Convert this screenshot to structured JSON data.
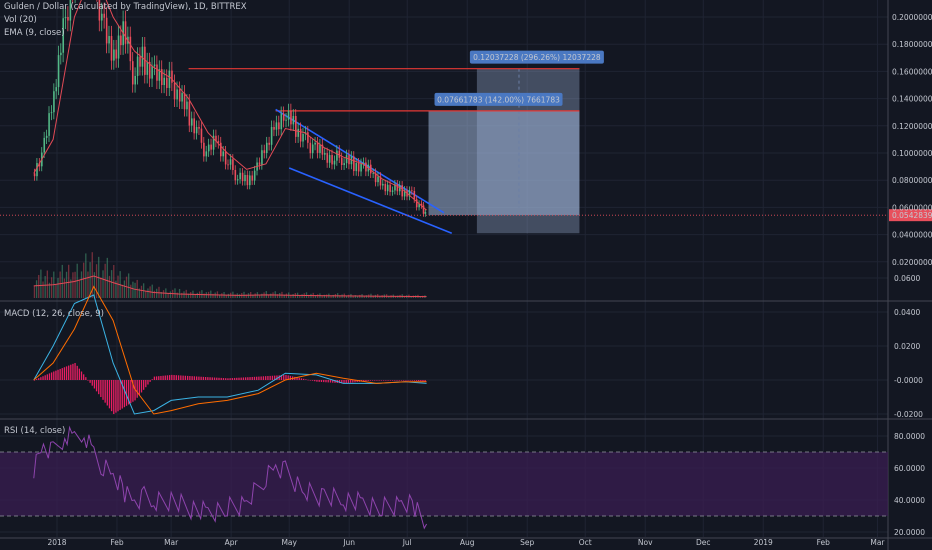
{
  "header": {
    "symbol_line": "Gulden / Dollar (calculated by TradingView), 1D, BITTREX",
    "vol_label": "Vol (20)",
    "ema_label": "EMA (9, close)",
    "macd_label": "MACD (12, 26, close, 9)",
    "rsi_label": "RSI (14, close)"
  },
  "colors": {
    "background": "#131722",
    "up": "#53b987",
    "down": "#eb4d5c",
    "ema": "#e24a56",
    "macd_line": "#3bb3e4",
    "signal_line": "#ff6d00",
    "histogram": "#e91e63",
    "rsi": "#8e44ad",
    "rsi_band": "#3a1e52",
    "trendline": "#2962ff",
    "target_line": "#e53935",
    "projection_box": "#9db2d6",
    "label_bg": "#4a78c2",
    "last_price_bg": "#e84f5c"
  },
  "chart_data": [
    {
      "type": "candlestick",
      "panel": "price",
      "title": "Gulden / Dollar (calculated by TradingView), 1D, BITTREX",
      "x_axis_labels": [
        "2018",
        "Feb",
        "Mar",
        "Apr",
        "May",
        "Jun",
        "Jul",
        "Aug",
        "Sep",
        "Oct",
        "Nov",
        "Dec",
        "2019",
        "Feb",
        "Mar"
      ],
      "y_ticks": [
        "0.20000000",
        "0.18000000",
        "0.16000000",
        "0.14000000",
        "0.12000000",
        "0.10000000",
        "0.08000000",
        "0.06000000",
        "0.04000000",
        "0.02000000"
      ],
      "last_price": "0.05428395",
      "series": [
        {
          "name": "price",
          "x": [
            "2017-12-20",
            "2017-12-25",
            "2017-12-30",
            "2018-01-05",
            "2018-01-10",
            "2018-01-15",
            "2018-01-20",
            "2018-01-25",
            "2018-01-30",
            "2018-02-05",
            "2018-02-10",
            "2018-02-15",
            "2018-02-20",
            "2018-02-25",
            "2018-03-01",
            "2018-03-05",
            "2018-03-10",
            "2018-03-15",
            "2018-03-20",
            "2018-03-25",
            "2018-03-30",
            "2018-04-04",
            "2018-04-09",
            "2018-04-14",
            "2018-04-19",
            "2018-04-24",
            "2018-04-29",
            "2018-05-04",
            "2018-05-09",
            "2018-05-14",
            "2018-05-19",
            "2018-05-24",
            "2018-05-29",
            "2018-06-03",
            "2018-06-08",
            "2018-06-13",
            "2018-06-18",
            "2018-06-23",
            "2018-06-28",
            "2018-07-03",
            "2018-07-08",
            "2018-07-11"
          ],
          "close": [
            0.085,
            0.098,
            0.13,
            0.19,
            0.23,
            0.26,
            0.24,
            0.2,
            0.17,
            0.19,
            0.16,
            0.17,
            0.16,
            0.15,
            0.155,
            0.145,
            0.13,
            0.115,
            0.1,
            0.11,
            0.095,
            0.085,
            0.08,
            0.085,
            0.1,
            0.12,
            0.13,
            0.12,
            0.11,
            0.105,
            0.1,
            0.095,
            0.097,
            0.093,
            0.09,
            0.085,
            0.078,
            0.075,
            0.072,
            0.07,
            0.062,
            0.054
          ]
        },
        {
          "name": "EMA (9, close)",
          "x": [
            "2017-12-20",
            "2017-12-30",
            "2018-01-10",
            "2018-01-20",
            "2018-01-30",
            "2018-02-10",
            "2018-02-20",
            "2018-03-01",
            "2018-03-10",
            "2018-03-20",
            "2018-03-30",
            "2018-04-09",
            "2018-04-19",
            "2018-04-29",
            "2018-05-09",
            "2018-05-19",
            "2018-05-29",
            "2018-06-08",
            "2018-06-18",
            "2018-06-28",
            "2018-07-11"
          ],
          "values": [
            0.085,
            0.11,
            0.2,
            0.235,
            0.2,
            0.175,
            0.163,
            0.155,
            0.14,
            0.115,
            0.1,
            0.088,
            0.092,
            0.118,
            0.115,
            0.104,
            0.097,
            0.092,
            0.081,
            0.074,
            0.058
          ]
        }
      ],
      "annotations": {
        "falling_wedge": {
          "upper": {
            "x": [
              "2018-04-24",
              "2018-07-20"
            ],
            "y": [
              0.132,
              0.056
            ]
          },
          "lower": {
            "x": [
              "2018-05-01",
              "2018-07-24"
            ],
            "y": [
              0.089,
              0.041
            ]
          }
        },
        "target_lines": [
          {
            "label": "0.07661783 (142.00%) 7661783",
            "price": 0.131,
            "from": "2018-04-24",
            "to": "2018-09-28"
          },
          {
            "label": "0.12037228 (296.26%) 12037228",
            "price": 0.162,
            "from": "2018-03-10",
            "to": "2018-09-28"
          }
        ],
        "projection_boxes": [
          {
            "from": "2018-07-12",
            "to": "2018-09-28",
            "y": [
              0.0543,
              0.131
            ]
          },
          {
            "from": "2018-08-06",
            "to": "2018-09-28",
            "y": [
              0.041,
              0.162
            ]
          }
        ]
      }
    },
    {
      "type": "bar",
      "panel": "volume",
      "name": "Vol (20)",
      "x": [
        "2017-12-20",
        "2017-12-30",
        "2018-01-10",
        "2018-01-20",
        "2018-01-30",
        "2018-02-10",
        "2018-02-20",
        "2018-03-05",
        "2018-03-20",
        "2018-04-05",
        "2018-04-20",
        "2018-05-05",
        "2018-05-20",
        "2018-06-05",
        "2018-06-20",
        "2018-07-05",
        "2018-07-11"
      ],
      "values": [
        0.55,
        0.6,
        0.75,
        1.0,
        0.7,
        0.4,
        0.25,
        0.18,
        0.15,
        0.12,
        0.14,
        0.12,
        0.1,
        0.09,
        0.08,
        0.07,
        0.06
      ]
    },
    {
      "type": "line",
      "panel": "macd",
      "title": "MACD (12, 26, close, 9)",
      "y_ticks": [
        "0.0600",
        "0.0400",
        "0.0200",
        "-0.0000",
        "-0.0200"
      ],
      "x": [
        "2017-12-20",
        "2017-12-30",
        "2018-01-10",
        "2018-01-20",
        "2018-01-30",
        "2018-02-10",
        "2018-02-20",
        "2018-03-01",
        "2018-03-15",
        "2018-03-30",
        "2018-04-15",
        "2018-04-29",
        "2018-05-15",
        "2018-05-29",
        "2018-06-15",
        "2018-06-30",
        "2018-07-11"
      ],
      "series": [
        {
          "name": "MACD",
          "values": [
            0.0,
            0.02,
            0.045,
            0.05,
            0.01,
            -0.02,
            -0.018,
            -0.012,
            -0.01,
            -0.01,
            -0.006,
            0.004,
            0.003,
            -0.002,
            -0.002,
            -0.001,
            -0.002
          ]
        },
        {
          "name": "Signal",
          "values": [
            0.0,
            0.01,
            0.03,
            0.055,
            0.035,
            -0.005,
            -0.02,
            -0.018,
            -0.014,
            -0.012,
            -0.008,
            0.0,
            0.004,
            0.001,
            -0.002,
            -0.001,
            -0.001
          ]
        },
        {
          "name": "Histogram",
          "values": [
            0.0,
            0.005,
            0.01,
            -0.005,
            -0.02,
            -0.012,
            0.002,
            0.003,
            0.002,
            0.001,
            0.002,
            0.003,
            -0.001,
            -0.002,
            0.0,
            0.0,
            -0.001
          ]
        }
      ]
    },
    {
      "type": "line",
      "panel": "rsi",
      "title": "RSI (14, close)",
      "y_ticks": [
        "80.0000",
        "60.0000",
        "40.0000",
        "20.0000"
      ],
      "bands": [
        70,
        30
      ],
      "x": [
        "2017-12-20",
        "2017-12-25",
        "2017-12-30",
        "2018-01-05",
        "2018-01-10",
        "2018-01-15",
        "2018-01-20",
        "2018-01-25",
        "2018-01-30",
        "2018-02-05",
        "2018-02-10",
        "2018-02-15",
        "2018-02-20",
        "2018-03-01",
        "2018-03-10",
        "2018-03-20",
        "2018-03-30",
        "2018-04-09",
        "2018-04-19",
        "2018-04-24",
        "2018-04-29",
        "2018-05-09",
        "2018-05-19",
        "2018-05-29",
        "2018-06-08",
        "2018-06-18",
        "2018-06-28",
        "2018-07-05",
        "2018-07-11"
      ],
      "values": [
        60,
        75,
        70,
        80,
        78,
        82,
        70,
        60,
        55,
        45,
        40,
        42,
        38,
        40,
        35,
        32,
        35,
        38,
        55,
        62,
        58,
        45,
        42,
        40,
        38,
        35,
        38,
        36,
        25
      ]
    }
  ]
}
